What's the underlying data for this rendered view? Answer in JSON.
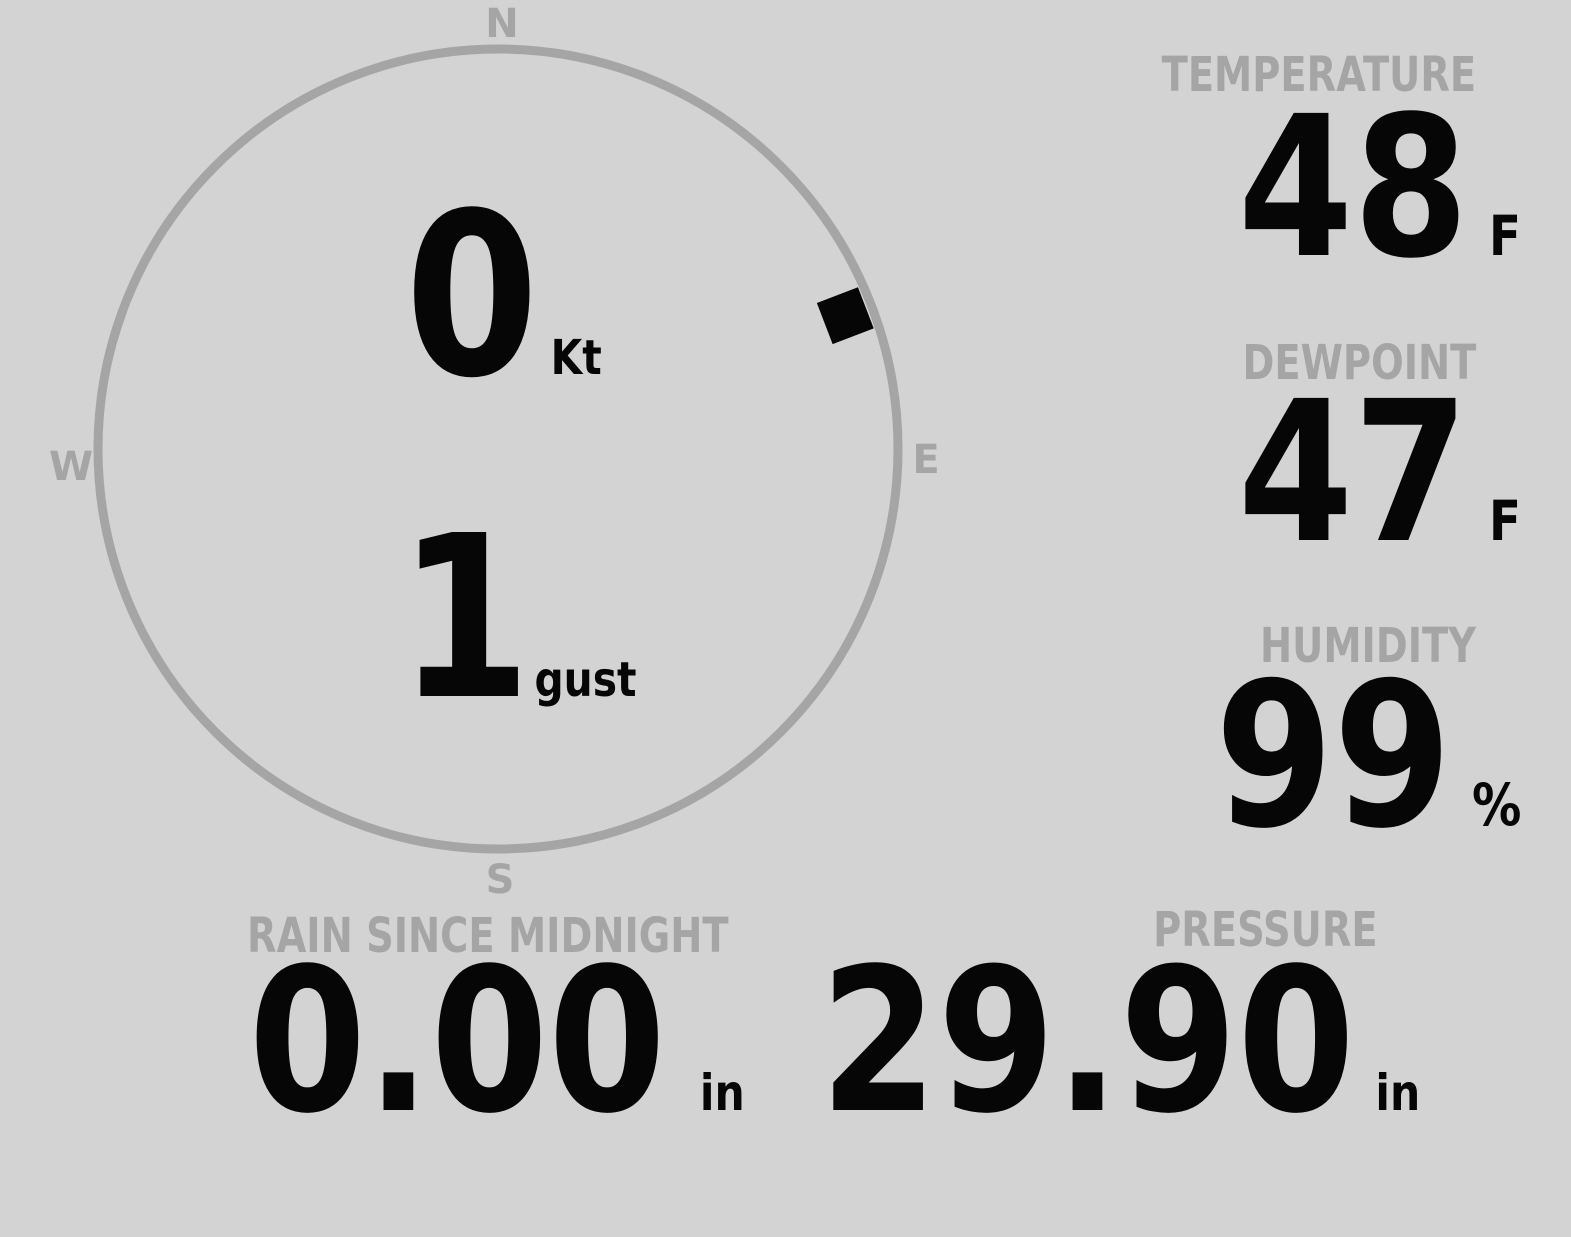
{
  "display": {
    "background_color": "#d3d3d3",
    "muted_color": "#a5a5a5",
    "text_color": "#060606"
  },
  "compass": {
    "cardinals": {
      "north": "N",
      "east": "E",
      "south": "S",
      "west": "W"
    },
    "wind_direction_deg": 69,
    "speed": {
      "value": "0",
      "unit": "Kt"
    },
    "gust": {
      "value": "1",
      "unit": "gust"
    }
  },
  "metrics": {
    "temperature": {
      "label": "TEMPERATURE",
      "value": "48",
      "unit": "F"
    },
    "dewpoint": {
      "label": "DEWPOINT",
      "value": "47",
      "unit": "F"
    },
    "humidity": {
      "label": "HUMIDITY",
      "value": "99",
      "unit": "%"
    },
    "rain": {
      "label": "RAIN SINCE MIDNIGHT",
      "value": "0.00",
      "unit": "in"
    },
    "pressure": {
      "label": "PRESSURE",
      "value": "29.90",
      "unit": "in"
    }
  }
}
